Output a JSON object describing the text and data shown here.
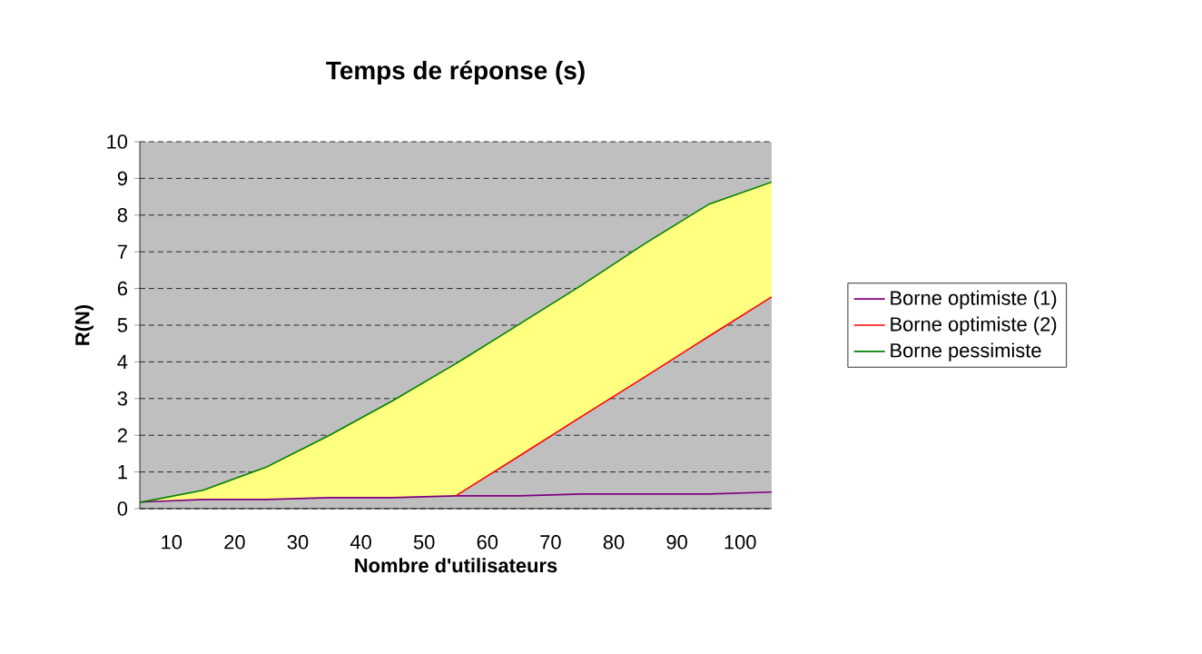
{
  "chart_data": {
    "type": "line",
    "title": "Temps de réponse (s)",
    "xlabel": "Nombre d'utilisateurs",
    "ylabel": "R(N)",
    "x": [
      5,
      15,
      25,
      35,
      45,
      55,
      65,
      75,
      85,
      95,
      105
    ],
    "xlim": [
      5,
      105
    ],
    "xticks": [
      10,
      20,
      30,
      40,
      50,
      60,
      70,
      80,
      90,
      100
    ],
    "ylim": [
      0,
      10
    ],
    "yticks": [
      0,
      1,
      2,
      3,
      4,
      5,
      6,
      7,
      8,
      9,
      10
    ],
    "grid": "y",
    "legend": "right",
    "marker": "none",
    "line_style": "solid",
    "series": [
      {
        "name": "Borne optimiste  (1)",
        "color": "#800080",
        "values": [
          0.18,
          0.25,
          0.25,
          0.3,
          0.3,
          0.35,
          0.35,
          0.4,
          0.4,
          0.4,
          0.45
        ]
      },
      {
        "name": "Borne optimiste  (2)",
        "color": "#ff0000",
        "values": [
          null,
          null,
          null,
          null,
          null,
          0.35,
          1.43,
          2.52,
          3.6,
          4.69,
          5.77
        ]
      },
      {
        "name": "Borne pessimiste",
        "color": "#008000",
        "values": [
          0.17,
          0.5,
          1.13,
          2.0,
          2.94,
          3.95,
          5.02,
          6.1,
          7.23,
          8.29,
          8.9
        ],
        "lower": [
          0.18,
          0.25,
          0.25,
          0.3,
          0.3,
          0.35,
          1.43,
          2.52,
          3.6,
          4.69,
          5.77
        ],
        "upper": [
          0.17,
          0.5,
          1.13,
          2.0,
          2.94,
          3.95,
          5.02,
          6.1,
          7.23,
          8.29,
          8.9
        ]
      }
    ]
  }
}
